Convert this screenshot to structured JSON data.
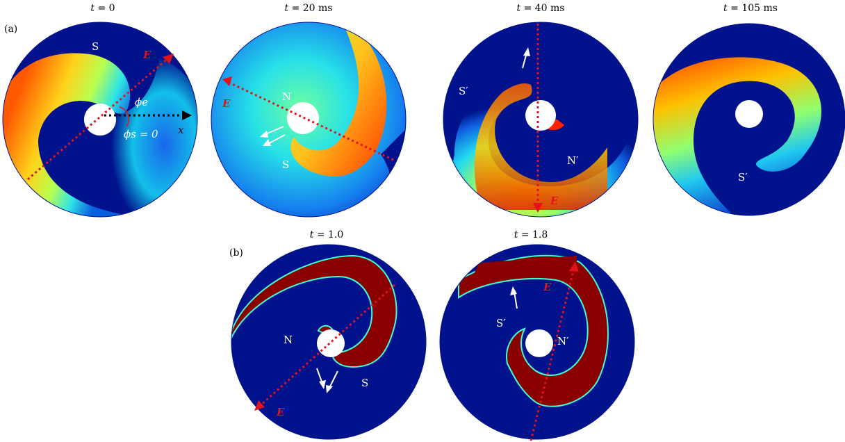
{
  "rows": {
    "a": {
      "label": "(a)",
      "titles": [
        {
          "var": "t",
          "rest": " = 0"
        },
        {
          "var": "t",
          "rest": " = 20 ms"
        },
        {
          "var": "t",
          "rest": " = 40 ms"
        },
        {
          "var": "t",
          "rest": " = 105 ms"
        }
      ]
    },
    "b": {
      "label": "(b)",
      "titles": [
        {
          "var": "t",
          "rest": " = 1.0"
        },
        {
          "var": "t",
          "rest": " = 1.8"
        }
      ]
    }
  },
  "annotations": {
    "S": "S",
    "N": "N",
    "S_prime": "S′",
    "N_prime": "N′",
    "E": "E",
    "phi_e": "ϕe",
    "phi_s": "ϕs = 0",
    "x": "x"
  },
  "colors": {
    "background_dark": "#00128c",
    "wave_red": "#8a0000",
    "field_arrow": "#e0141c",
    "axis_arrow": "#000000",
    "hole": "#ffffff"
  }
}
